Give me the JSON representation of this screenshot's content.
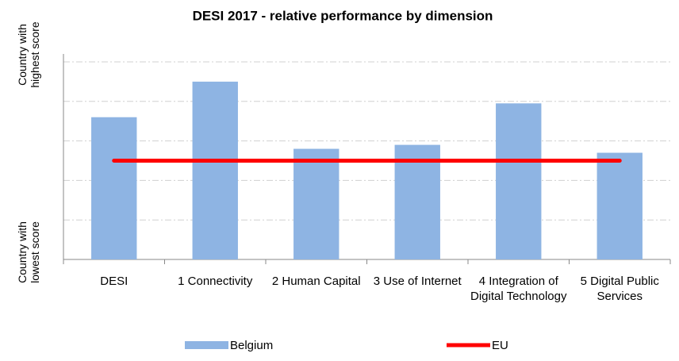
{
  "chart_data": {
    "type": "bar",
    "title": "DESI 2017 - relative performance by dimension",
    "y_label_top": "Country with highest score",
    "y_label_bottom": "Country with lowest score",
    "categories": [
      "DESI",
      "1 Connectivity",
      "2 Human Capital",
      "3 Use of Internet",
      "4 Integration of Digital Technology",
      "5 Digital Public Services"
    ],
    "series": [
      {
        "name": "Belgium",
        "type": "bar",
        "color": "#8eb4e3",
        "values": [
          0.72,
          0.9,
          0.56,
          0.58,
          0.79,
          0.54
        ]
      },
      {
        "name": "EU",
        "type": "line",
        "color": "#ff0000",
        "values": [
          0.5,
          0.5,
          0.5,
          0.5,
          0.5,
          0.5
        ]
      }
    ],
    "ylim": [
      0,
      1
    ],
    "yticks": [
      0.2,
      0.4,
      0.6,
      0.8,
      1.0
    ],
    "grid": true
  }
}
